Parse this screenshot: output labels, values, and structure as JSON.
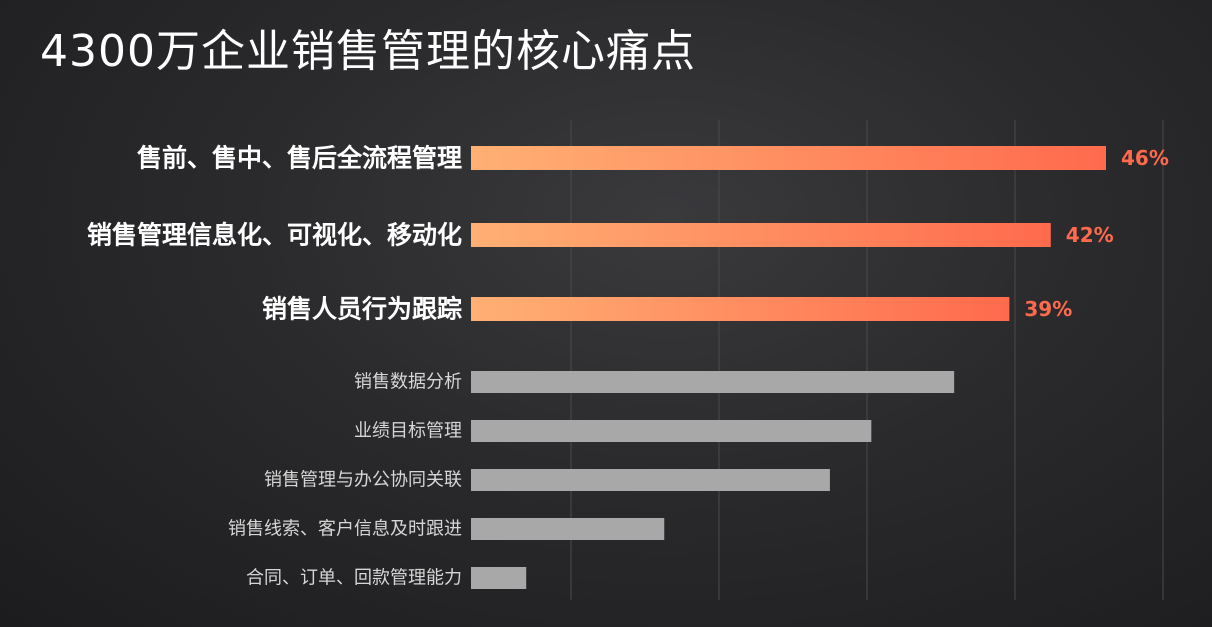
{
  "chart_data": {
    "type": "bar",
    "orientation": "horizontal",
    "title": "4300万企业销售管理的核心痛点",
    "categories": [
      "售前、售中、售后全流程管理",
      "销售管理信息化、可视化、移动化",
      "销售人员行为跟踪",
      "销售数据分析",
      "业绩目标管理",
      "销售管理与办公协同关联",
      "销售线索、客户信息及时跟进",
      "合同、订单、回款管理能力"
    ],
    "values": [
      46,
      42,
      39,
      35,
      29,
      26,
      14,
      4
    ],
    "value_labels": [
      "46%",
      "42%",
      "39%",
      "",
      "",
      "",
      "",
      ""
    ],
    "highlighted": [
      true,
      true,
      true,
      false,
      false,
      false,
      false,
      false
    ],
    "xlim": [
      0,
      48
    ],
    "grid": true,
    "colors": {
      "highlight_start": "#ffb074",
      "highlight_end": "#ff6a4d",
      "normal_bar": "#a8a8a8",
      "label_value": "#ff6a4d"
    }
  }
}
